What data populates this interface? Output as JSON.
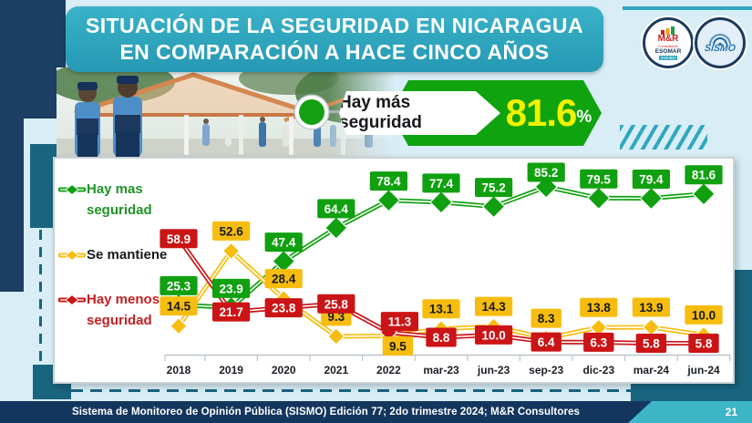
{
  "header": {
    "title_line1": "SITUACIÓN DE LA SEGURIDAD EN NICARAGUA",
    "title_line2": "EN COMPARACIÓN A HACE CINCO AÑOS"
  },
  "logos": {
    "mr": {
      "name": "M&R",
      "consultores": "Consultores",
      "esomar": "ESOMAR",
      "member": "member"
    },
    "sismo": {
      "label": "SISMO"
    }
  },
  "callout": {
    "label": "Hay más seguridad",
    "value": "81.6",
    "unit": "%"
  },
  "legend": [
    {
      "line1": "Hay mas",
      "line2": "seguridad",
      "text_color": "#1f9427"
    },
    {
      "line1": "Se mantiene",
      "line2": "",
      "text_color": "#17191c"
    },
    {
      "line1": "Hay menos",
      "line2": "seguridad",
      "text_color": "#c32022"
    }
  ],
  "colors": {
    "accent_teal": "#2FA8BF",
    "navy": "#1C3F63",
    "panel_frame": "#19647F",
    "footer_teal": "#3DB6C8",
    "value_yellow": "#F1F200"
  },
  "chart_data": {
    "type": "line",
    "categories": [
      "2018",
      "2019",
      "2020",
      "2021",
      "2022",
      "mar-23",
      "jun-23",
      "sep-23",
      "dic-23",
      "mar-24",
      "jun-24"
    ],
    "series": [
      {
        "name": "Hay mas seguridad",
        "color": "#10A010",
        "label_bg": "#10A010",
        "label_text": "#ffffff",
        "marker": "diamond",
        "marker_size": 12,
        "label_dy": -21,
        "label_overrides": {
          "7": {
            "dy": -16
          }
        },
        "values": [
          25.3,
          23.9,
          47.4,
          64.4,
          78.4,
          77.4,
          75.2,
          85.2,
          79.5,
          79.4,
          81.6
        ]
      },
      {
        "name": "Se mantiene",
        "color": "#F7BD0E",
        "label_bg": "#F7BD0E",
        "label_text": "#17191c",
        "marker": "diamond",
        "marker_size": 9,
        "label_dy": -22,
        "label_overrides": {
          "4": {
            "dy": 11,
            "dx": 10
          }
        },
        "values": [
          14.5,
          52.6,
          28.4,
          9.3,
          9.5,
          13.1,
          14.3,
          8.3,
          13.8,
          13.9,
          10.0
        ]
      },
      {
        "name": "Hay menos seguridad",
        "color": "#CB1416",
        "label_bg": "#CB1416",
        "label_text": "#ffffff",
        "marker": "diamond",
        "marker_size": 9,
        "label_dy": 0,
        "label_overrides": {
          "4": {
            "dy": -12,
            "dx": 12
          }
        },
        "values": [
          58.9,
          21.7,
          23.8,
          25.8,
          11.3,
          8.8,
          10.0,
          6.4,
          6.3,
          5.8,
          5.8
        ]
      }
    ],
    "ylim": [
      0,
      90
    ],
    "grid": false,
    "legend_position": "left"
  },
  "footer": {
    "text": "Sistema de Monitoreo de Opinión Pública (SISMO) Edición 77; 2do trimestre 2024; M&R Consultores",
    "page": "21"
  }
}
